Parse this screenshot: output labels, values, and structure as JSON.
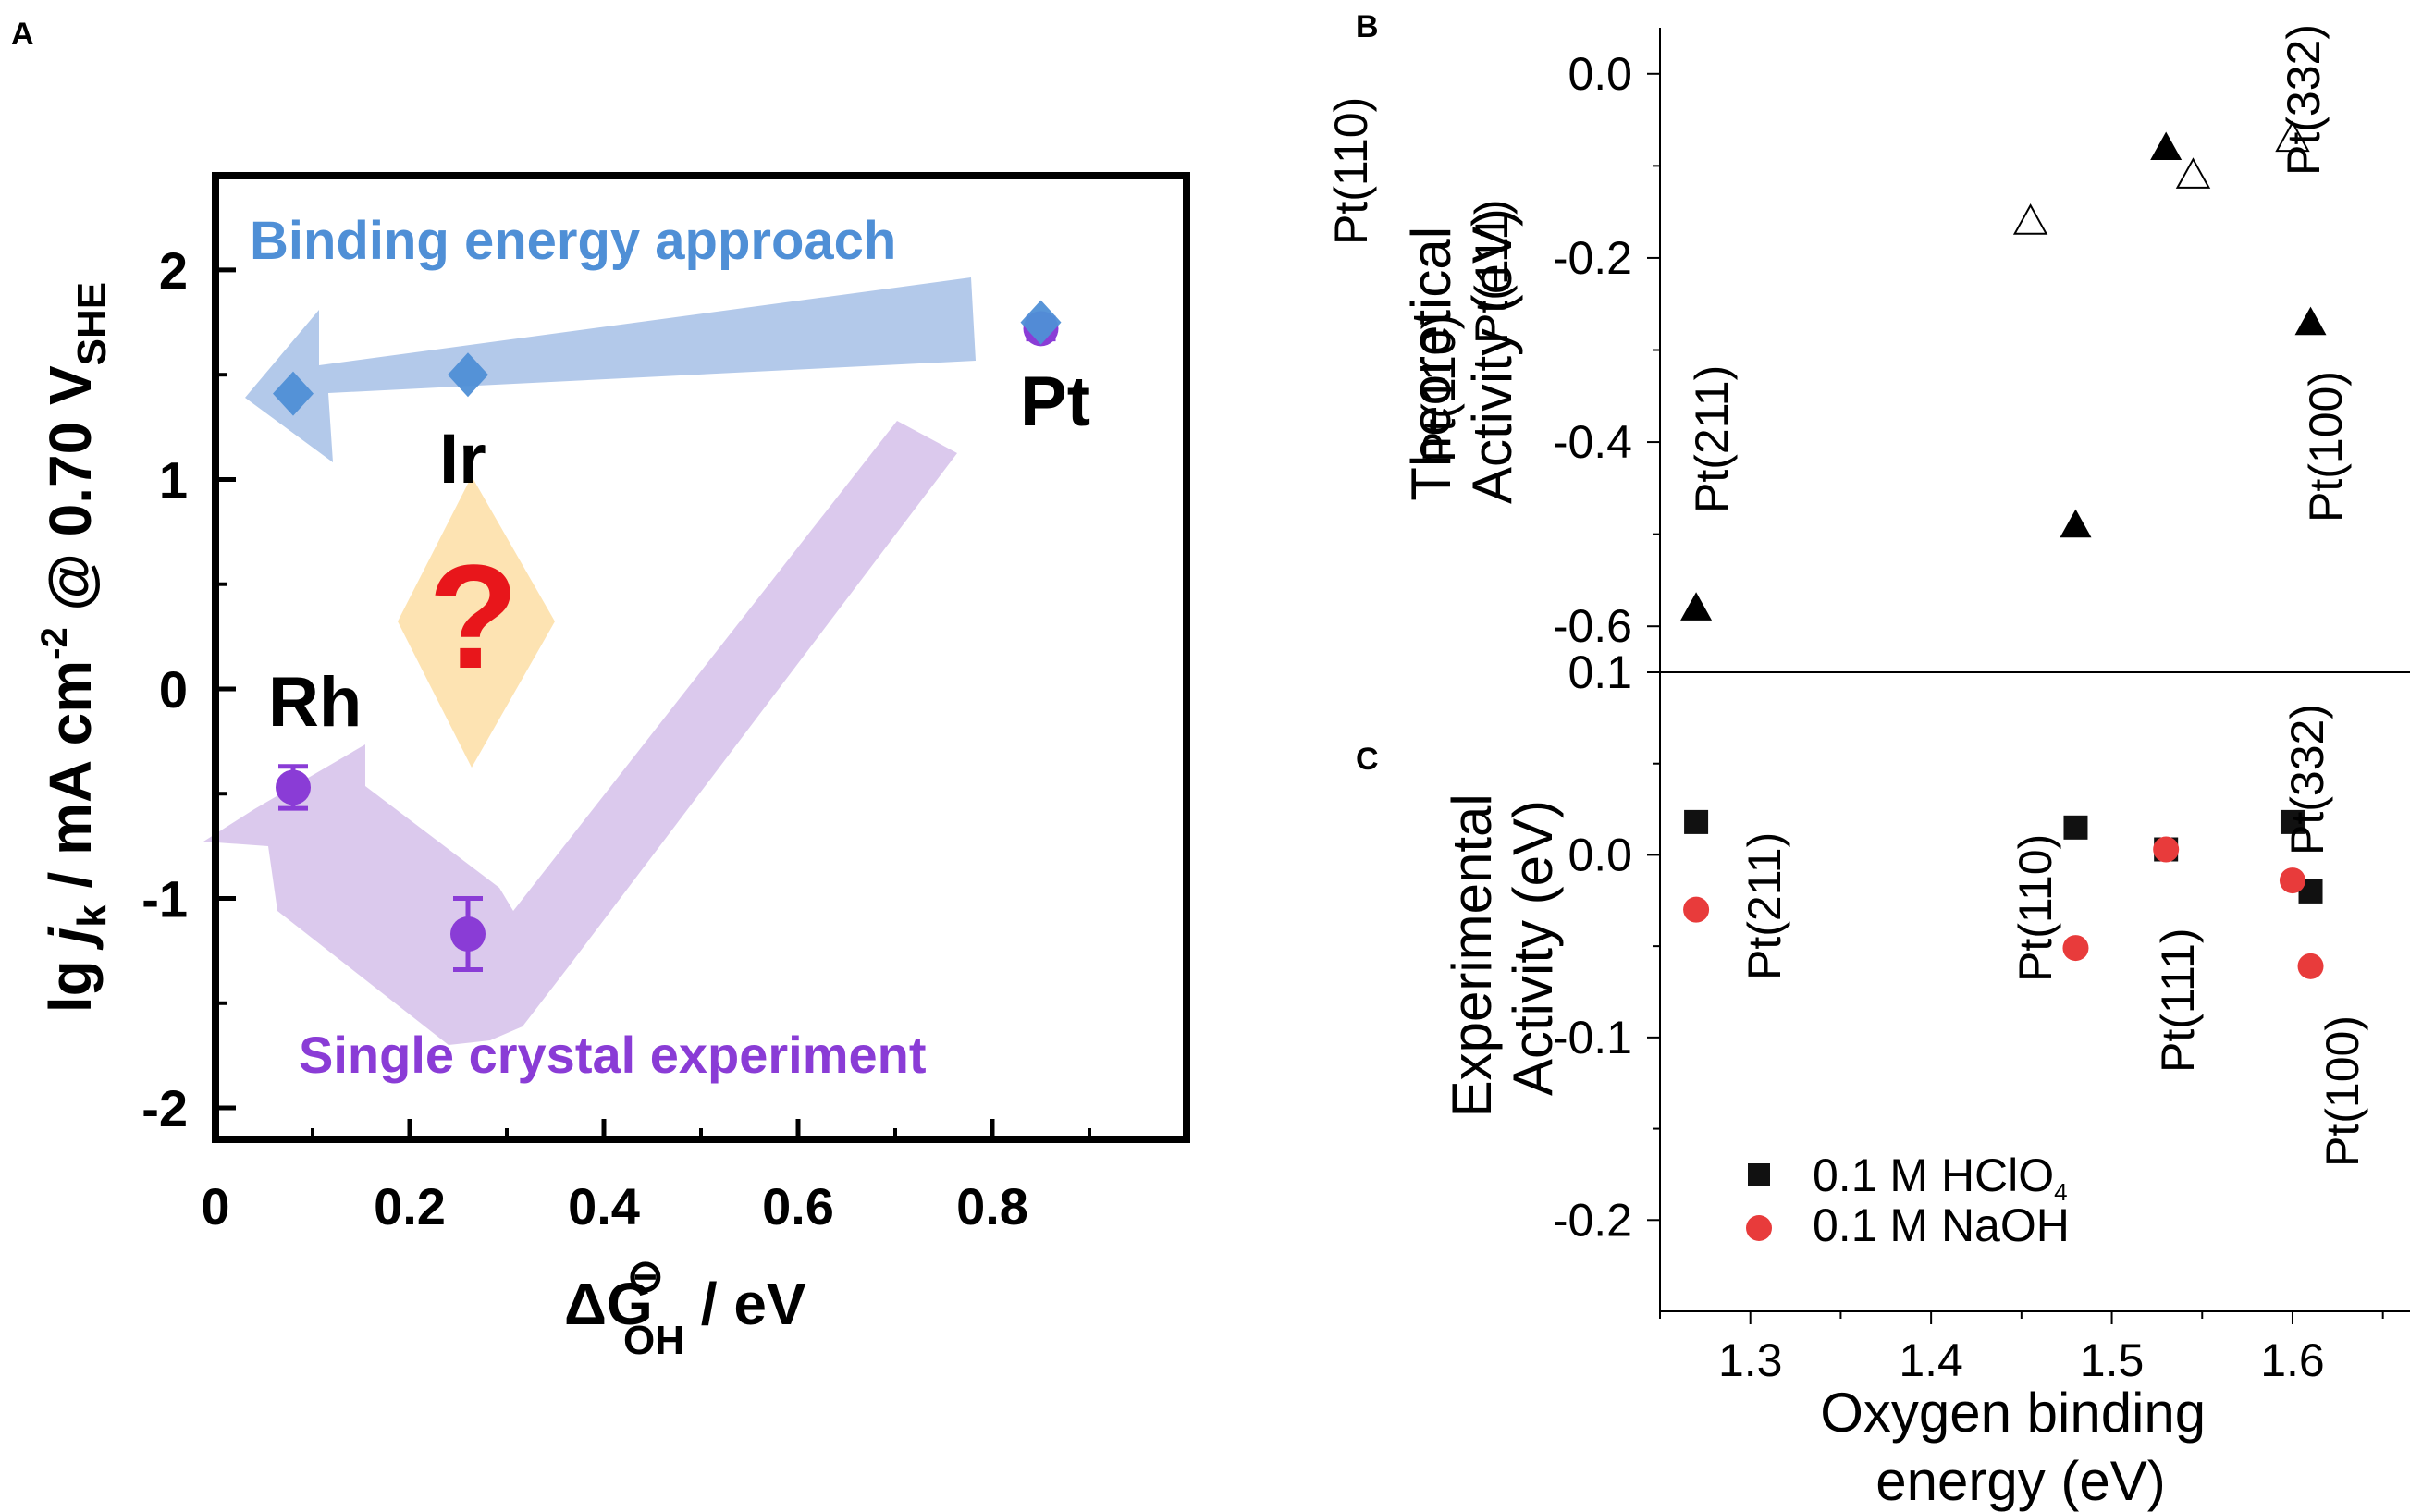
{
  "panel_labels": [
    "A",
    "B",
    "C"
  ],
  "colors": {
    "binding": "#4f8fd6",
    "binding_arrow": "#b3c9ea",
    "single": "#8a3cd6",
    "single_arrow": "#d9c6ec",
    "diamond": "#fde3b2",
    "question": "#e8161b",
    "naoh": "#e83b3b",
    "hclo4": "#111111"
  },
  "chart_data": [
    {
      "panel": "A",
      "type": "scatter",
      "ylabel_parts": [
        "lg ",
        "j",
        "k",
        " / mA cm",
        "-2",
        " @ 0.70 V",
        "SHE"
      ],
      "xlabel_parts": [
        "ΔG",
        "⊖",
        "OH",
        " / eV"
      ],
      "xlim": [
        0,
        1.0
      ],
      "ylim": [
        -2.15,
        2.45
      ],
      "xticks": [
        "0",
        "0.2",
        "0.4",
        "0.6",
        "0.8"
      ],
      "xtick_values": [
        0,
        0.2,
        0.4,
        0.6,
        0.8
      ],
      "yticks": [
        "-2",
        "-1",
        "0",
        "1",
        "2"
      ],
      "ytick_values": [
        -2,
        -1,
        0,
        1,
        2
      ],
      "series": [
        {
          "name": "Binding energy approach",
          "marker": "diamond",
          "points": [
            {
              "label": "Rh",
              "x": 0.08,
              "y": 1.41
            },
            {
              "label": "Ir",
              "x": 0.26,
              "y": 1.5
            },
            {
              "label": "Pt",
              "x": 0.85,
              "y": 1.75
            }
          ]
        },
        {
          "name": "Single crystal experiment",
          "marker": "circle",
          "points": [
            {
              "label": "Rh",
              "x": 0.08,
              "y": -0.47,
              "err": 0.1
            },
            {
              "label": "Ir",
              "x": 0.26,
              "y": -1.17,
              "err": 0.17
            },
            {
              "label": "Pt",
              "x": 0.85,
              "y": 1.72,
              "err": 0.05
            }
          ]
        }
      ],
      "annotations": {
        "binding_text": "Binding energy approach",
        "single_text": "Single crystal experiment",
        "question": "?",
        "metal_labels": [
          "Rh",
          "Ir",
          "Pt"
        ]
      }
    },
    {
      "panel": "B",
      "type": "scatter",
      "ylabel_lines": [
        "Theoretical",
        "Activity (eV)"
      ],
      "xlim": [
        1.25,
        1.665
      ],
      "ylim": [
        -0.65,
        0.05
      ],
      "yticks": [
        "0.0",
        "-0.2",
        "-0.4",
        "-0.6"
      ],
      "ytick_values": [
        0.0,
        -0.2,
        -0.4,
        -0.6
      ],
      "series": [
        {
          "name": "filled",
          "marker": "triangle",
          "points": [
            {
              "label": "Pt(211)",
              "x": 1.27,
              "y": -0.58
            },
            {
              "label": "Pt(110)",
              "x": 1.48,
              "y": -0.49
            },
            {
              "label": "Pt(111)",
              "x": 1.53,
              "y": -0.08
            },
            {
              "label": "Pt(100)",
              "x": 1.61,
              "y": -0.27
            }
          ]
        },
        {
          "name": "open",
          "marker": "triangle-open",
          "points": [
            {
              "label": "Pt(110)",
              "x": 1.455,
              "y": -0.16
            },
            {
              "label": "Pt(111)",
              "x": 1.545,
              "y": -0.11
            },
            {
              "label": "Pt(332)",
              "x": 1.6,
              "y": -0.07
            }
          ]
        }
      ]
    },
    {
      "panel": "C",
      "type": "scatter",
      "ylabel_lines": [
        "Experimental",
        "Activity (eV)"
      ],
      "xlabel_lines": [
        "Oxygen binding",
        "energy (eV)"
      ],
      "xlim": [
        1.25,
        1.665
      ],
      "ylim": [
        -0.25,
        0.1
      ],
      "xticks": [
        "1.3",
        "1.4",
        "1.5",
        "1.6"
      ],
      "xtick_values": [
        1.3,
        1.4,
        1.5,
        1.6
      ],
      "yticks": [
        "0.1",
        "0.0",
        "-0.1",
        "-0.2"
      ],
      "ytick_values": [
        0.1,
        0.0,
        -0.1,
        -0.2
      ],
      "legend": [
        {
          "label": "0.1 M HClO",
          "sub": "4",
          "marker": "square"
        },
        {
          "label": "0.1 M NaOH",
          "sub": "",
          "marker": "circle"
        }
      ],
      "series": [
        {
          "name": "0.1 M HClO4",
          "marker": "square",
          "points": [
            {
              "x": 1.27,
              "y": 0.018
            },
            {
              "x": 1.48,
              "y": 0.015
            },
            {
              "x": 1.53,
              "y": 0.003
            },
            {
              "x": 1.6,
              "y": 0.018
            },
            {
              "x": 1.61,
              "y": -0.02
            }
          ]
        },
        {
          "name": "0.1 M NaOH",
          "marker": "circle",
          "points": [
            {
              "x": 1.27,
              "y": -0.03
            },
            {
              "x": 1.48,
              "y": -0.051
            },
            {
              "x": 1.53,
              "y": 0.003
            },
            {
              "x": 1.6,
              "y": -0.014
            },
            {
              "x": 1.61,
              "y": -0.061
            }
          ]
        }
      ],
      "point_labels": [
        "Pt(211)",
        "Pt(110)",
        "Pt(111)",
        "Pt(332)",
        "Pt(100)"
      ]
    }
  ]
}
